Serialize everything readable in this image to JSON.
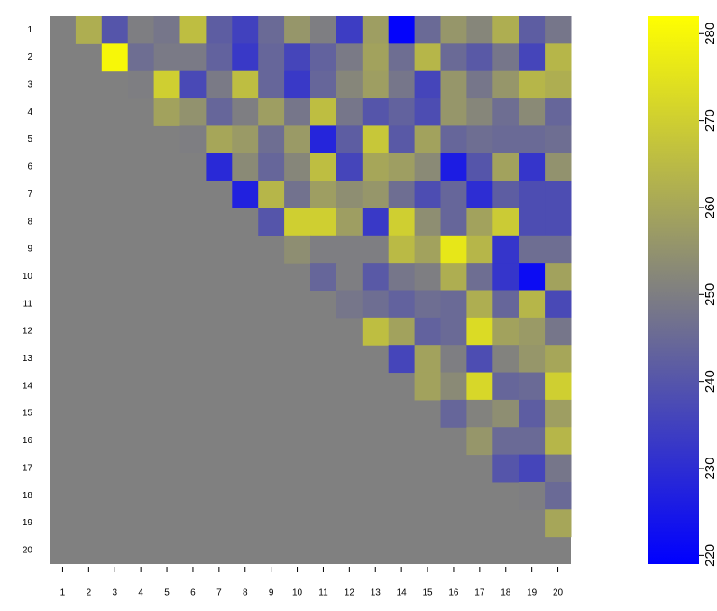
{
  "chart_data": {
    "type": "heatmap",
    "x_categories": [
      1,
      2,
      3,
      4,
      5,
      6,
      7,
      8,
      9,
      10,
      11,
      12,
      13,
      14,
      15,
      16,
      17,
      18,
      19,
      20
    ],
    "y_categories": [
      1,
      2,
      3,
      4,
      5,
      6,
      7,
      8,
      9,
      10,
      11,
      12,
      13,
      14,
      15,
      16,
      17,
      18,
      19,
      20
    ],
    "values": [
      [
        null,
        262,
        240,
        250,
        248,
        266,
        242,
        235,
        245,
        256,
        250,
        234,
        258,
        220,
        245,
        256,
        252,
        262,
        242,
        248
      ],
      [
        null,
        null,
        280,
        246,
        249,
        249,
        243,
        233,
        244,
        236,
        243,
        249,
        259,
        246,
        264,
        245,
        241,
        248,
        236,
        264
      ],
      [
        null,
        null,
        null,
        250,
        270,
        237,
        249,
        266,
        244,
        233,
        244,
        252,
        258,
        248,
        236,
        256,
        248,
        256,
        264,
        262
      ],
      [
        null,
        null,
        null,
        null,
        259,
        255,
        244,
        250,
        258,
        248,
        266,
        248,
        240,
        243,
        238,
        256,
        252,
        246,
        253,
        244
      ],
      [
        null,
        null,
        null,
        null,
        null,
        250,
        260,
        257,
        246,
        257,
        228,
        242,
        268,
        241,
        259,
        244,
        246,
        245,
        245,
        246
      ],
      [
        null,
        null,
        null,
        null,
        null,
        null,
        229,
        253,
        244,
        252,
        266,
        236,
        260,
        258,
        253,
        226,
        240,
        259,
        232,
        255
      ],
      [
        null,
        null,
        null,
        null,
        null,
        null,
        null,
        227,
        264,
        247,
        258,
        254,
        256,
        246,
        238,
        244,
        230,
        242,
        238,
        238
      ],
      [
        null,
        null,
        null,
        null,
        null,
        null,
        null,
        null,
        240,
        270,
        270,
        258,
        233,
        270,
        254,
        244,
        259,
        269,
        238,
        238
      ],
      [
        null,
        null,
        null,
        null,
        null,
        null,
        null,
        null,
        null,
        254,
        250,
        250,
        250,
        265,
        259,
        276,
        264,
        232,
        246,
        246
      ],
      [
        null,
        null,
        null,
        null,
        null,
        null,
        null,
        null,
        null,
        null,
        244,
        250,
        241,
        248,
        250,
        262,
        246,
        232,
        222,
        259
      ],
      [
        null,
        null,
        null,
        null,
        null,
        null,
        null,
        null,
        null,
        null,
        null,
        248,
        246,
        243,
        246,
        245,
        262,
        244,
        264,
        237
      ],
      [
        null,
        null,
        null,
        null,
        null,
        null,
        null,
        null,
        null,
        null,
        null,
        null,
        266,
        259,
        243,
        245,
        273,
        259,
        257,
        248
      ],
      [
        null,
        null,
        null,
        null,
        null,
        null,
        null,
        null,
        null,
        null,
        null,
        null,
        null,
        236,
        259,
        250,
        238,
        251,
        256,
        260
      ],
      [
        null,
        null,
        null,
        null,
        null,
        null,
        null,
        null,
        null,
        null,
        null,
        null,
        null,
        null,
        259,
        253,
        272,
        244,
        245,
        270
      ],
      [
        null,
        null,
        null,
        null,
        null,
        null,
        null,
        null,
        null,
        null,
        null,
        null,
        null,
        null,
        null,
        244,
        251,
        254,
        242,
        258
      ],
      [
        null,
        null,
        null,
        null,
        null,
        null,
        null,
        null,
        null,
        null,
        null,
        null,
        null,
        null,
        null,
        null,
        256,
        245,
        245,
        264
      ],
      [
        null,
        null,
        null,
        null,
        null,
        null,
        null,
        null,
        null,
        null,
        null,
        null,
        null,
        null,
        null,
        null,
        null,
        240,
        236,
        248
      ],
      [
        null,
        null,
        null,
        null,
        null,
        null,
        null,
        null,
        null,
        null,
        null,
        null,
        null,
        null,
        null,
        null,
        null,
        null,
        250,
        245
      ],
      [
        null,
        null,
        null,
        null,
        null,
        null,
        null,
        null,
        null,
        null,
        null,
        null,
        null,
        null,
        null,
        null,
        null,
        null,
        null,
        260
      ],
      [
        null,
        null,
        null,
        null,
        null,
        null,
        null,
        null,
        null,
        null,
        null,
        null,
        null,
        null,
        null,
        null,
        null,
        null,
        null,
        null
      ]
    ],
    "colors": [
      "#0000ff",
      "#808080",
      "#ffff00"
    ],
    "na_color": "#808080",
    "zlim": [
      219,
      282
    ],
    "zticks": [
      220,
      230,
      240,
      250,
      260,
      270,
      280
    ]
  }
}
